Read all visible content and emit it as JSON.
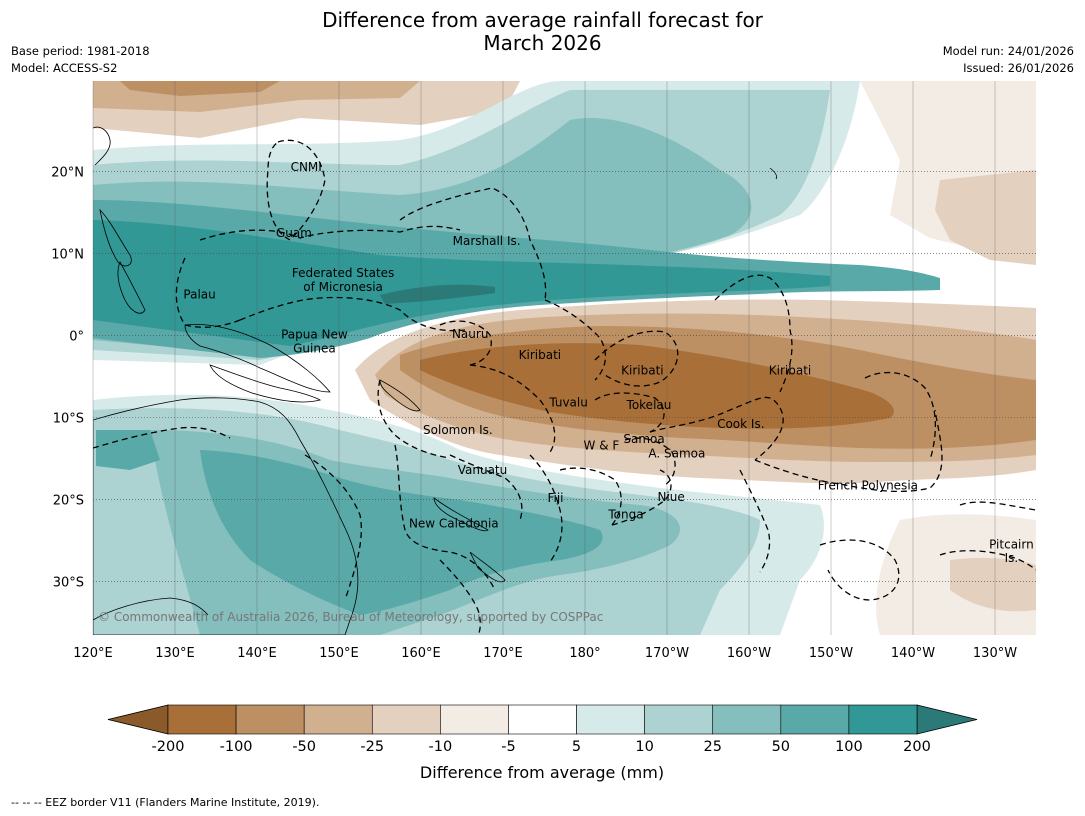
{
  "header": {
    "title_line1": "Difference from average rainfall forecast for",
    "title_line2": "March 2026",
    "base_period": "Base period: 1981-2018",
    "model": "Model: ACCESS-S2",
    "model_run": "Model run: 24/01/2026",
    "issued": "Issued: 26/01/2026"
  },
  "map": {
    "lon_ticks": [
      "120°E",
      "130°E",
      "140°E",
      "150°E",
      "160°E",
      "170°E",
      "180°",
      "170°W",
      "160°W",
      "150°W",
      "140°W",
      "130°W"
    ],
    "lat_ticks": [
      "20°N",
      "10°N",
      "0°",
      "10°S",
      "20°S",
      "30°S"
    ],
    "copyright": "© Commonwealth of Australia 2026, Bureau of Meteorology, supported by COSPPac",
    "regions": [
      {
        "name": "CNMI",
        "lon": 146,
        "lat": 20.5
      },
      {
        "name": "Guam",
        "lon": 144.5,
        "lat": 12.5
      },
      {
        "name": "Marshall Is.",
        "lon": 168,
        "lat": 11.5
      },
      {
        "name": "Federated States",
        "lon": 150.5,
        "lat": 7.6
      },
      {
        "name": "of Micronesia",
        "lon": 150.5,
        "lat": 5.9
      },
      {
        "name": "Palau",
        "lon": 133,
        "lat": 5.0
      },
      {
        "name": "Papua New",
        "lon": 147,
        "lat": 0.1
      },
      {
        "name": "Guinea",
        "lon": 147,
        "lat": -1.6
      },
      {
        "name": "Nauru",
        "lon": 166,
        "lat": 0.2
      },
      {
        "name": "Kiribati",
        "lon": 174.5,
        "lat": -2.4
      },
      {
        "name": "Kiribati",
        "lon": -173,
        "lat": -4.3
      },
      {
        "name": "Kiribati",
        "lon": -155,
        "lat": -4.3
      },
      {
        "name": "Tuvalu",
        "lon": 178,
        "lat": -8.2
      },
      {
        "name": "Tokelau",
        "lon": -172.2,
        "lat": -8.5
      },
      {
        "name": "Cook Is.",
        "lon": -161,
        "lat": -10.8
      },
      {
        "name": "Solomon Is.",
        "lon": 164.5,
        "lat": -11.5
      },
      {
        "name": "Samoa",
        "lon": -172.8,
        "lat": -12.6
      },
      {
        "name": "W & F",
        "lon": -178,
        "lat": -13.4
      },
      {
        "name": "A. Samoa",
        "lon": -168.8,
        "lat": -14.4
      },
      {
        "name": "Vanuatu",
        "lon": 167.5,
        "lat": -16.4
      },
      {
        "name": "French Polynesia",
        "lon": -145.5,
        "lat": -18.3
      },
      {
        "name": "Fiji",
        "lon": 176.4,
        "lat": -19.8
      },
      {
        "name": "Niue",
        "lon": -169.5,
        "lat": -19.7
      },
      {
        "name": "Tonga",
        "lon": -175,
        "lat": -21.8
      },
      {
        "name": "New Caledonia",
        "lon": 164,
        "lat": -22.9
      },
      {
        "name": "Pitcairn",
        "lon": -128,
        "lat": -25.5
      },
      {
        "name": "Is.",
        "lon": -128,
        "lat": -27.1
      }
    ]
  },
  "colorbar": {
    "ticks": [
      "-200",
      "-100",
      "-50",
      "-25",
      "-10",
      "-5",
      "5",
      "10",
      "25",
      "50",
      "100",
      "200"
    ],
    "colors": [
      "#a87038",
      "#bd9064",
      "#d1b08f",
      "#e4d0be",
      "#f3ece5",
      "#ffffff",
      "#d6eae9",
      "#acd2d1",
      "#84bebd",
      "#58a9a8",
      "#319895"
    ],
    "under_color": "#8b5a2b",
    "over_color": "#2b7a78",
    "title": "Difference from average (mm)"
  },
  "footnote": "-- -- -- EEZ border V11 (Flanders Marine Institute, 2019)."
}
